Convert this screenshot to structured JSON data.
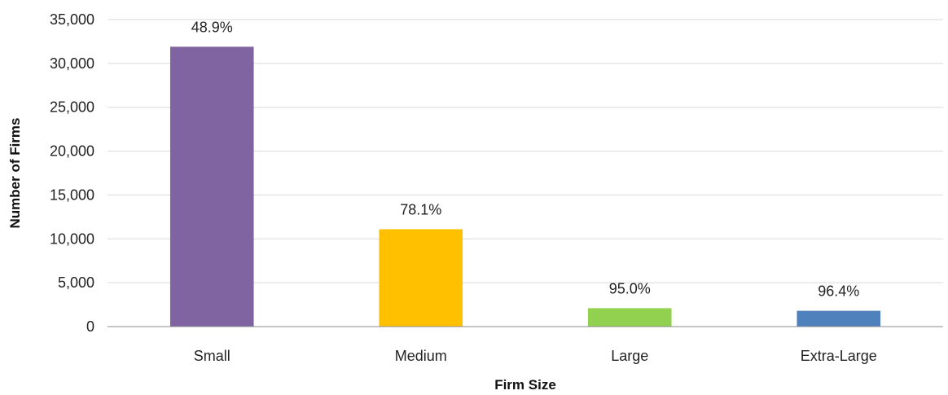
{
  "chart_data": {
    "type": "bar",
    "title": "",
    "xlabel": "Firm Size",
    "ylabel": "Number of Firms",
    "categories": [
      "Small",
      "Medium",
      "Large",
      "Extra-Large"
    ],
    "values": [
      31900,
      11100,
      2100,
      1800
    ],
    "data_labels": [
      "48.9%",
      "78.1%",
      "95.0%",
      "96.4%"
    ],
    "colors": [
      "#8064a2",
      "#ffc000",
      "#92d050",
      "#4f81bd"
    ],
    "ylim": [
      0,
      35000
    ],
    "yticks": [
      0,
      5000,
      10000,
      15000,
      20000,
      25000,
      30000,
      35000
    ],
    "ytick_labels": [
      "0",
      "5,000",
      "10,000",
      "15,000",
      "20,000",
      "25,000",
      "30,000",
      "35,000"
    ],
    "grid": true,
    "legend": false
  }
}
